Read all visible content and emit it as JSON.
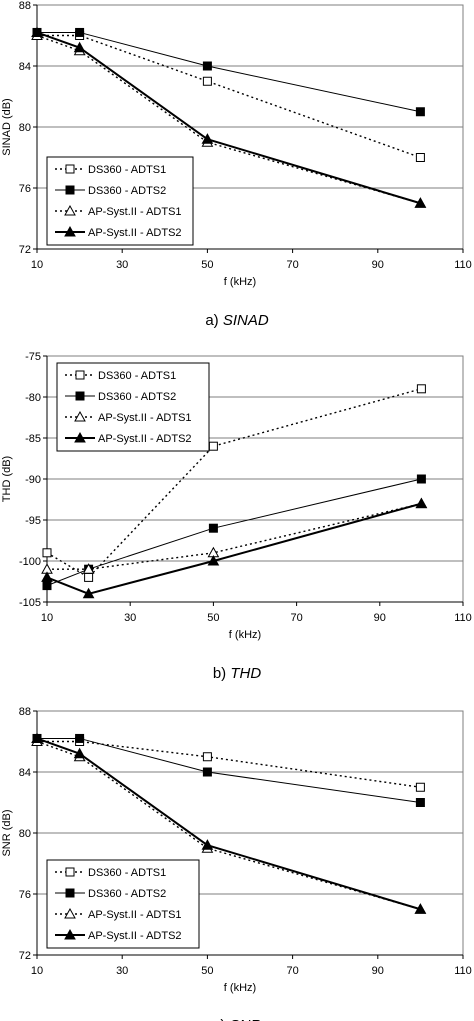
{
  "chart_data": [
    {
      "type": "line",
      "x": [
        10,
        20,
        50,
        100
      ],
      "xlim": [
        10,
        110
      ],
      "ylim": [
        72,
        88
      ],
      "xticks": [
        10,
        30,
        50,
        70,
        90,
        110
      ],
      "yticks": [
        72,
        76,
        80,
        84,
        88
      ],
      "xlabel": "f (kHz)",
      "ylabel": "SINAD (dB)",
      "grid": "horizontal",
      "legend_placement": "bottom-left",
      "caption_prefix": "a) ",
      "caption_italic": "SINAD",
      "series": [
        {
          "name": "DS360 - ADTS1",
          "values": [
            86.0,
            86.0,
            83.0,
            78.0
          ],
          "marker": "square-open",
          "line": "dotted"
        },
        {
          "name": "DS360 - ADTS2",
          "values": [
            86.2,
            86.2,
            84.0,
            81.0
          ],
          "marker": "square-filled",
          "line": "thin"
        },
        {
          "name": "AP-Syst.II - ADTS1",
          "values": [
            86.0,
            85.0,
            79.0,
            75.0
          ],
          "marker": "triangle-open",
          "line": "dotted"
        },
        {
          "name": "AP-Syst.II - ADTS2",
          "values": [
            86.2,
            85.2,
            79.2,
            75.0
          ],
          "marker": "triangle-filled",
          "line": "thick"
        }
      ]
    },
    {
      "type": "line",
      "x": [
        10,
        20,
        50,
        100
      ],
      "xlim": [
        10,
        110
      ],
      "ylim": [
        -105,
        -75
      ],
      "xticks": [
        10,
        30,
        50,
        70,
        90,
        110
      ],
      "yticks": [
        -105,
        -100,
        -95,
        -90,
        -85,
        -80,
        -75
      ],
      "xlabel": "f (kHz)",
      "ylabel": "THD (dB)",
      "grid": "horizontal",
      "legend_placement": "top-left",
      "caption_prefix": "b) ",
      "caption_italic": "THD",
      "series": [
        {
          "name": "DS360 - ADTS1",
          "values": [
            -99,
            -102,
            -86,
            -79
          ],
          "marker": "square-open",
          "line": "dotted"
        },
        {
          "name": "DS360 - ADTS2",
          "values": [
            -103,
            -101,
            -96,
            -90
          ],
          "marker": "square-filled",
          "line": "thin"
        },
        {
          "name": "AP-Syst.II - ADTS1",
          "values": [
            -101,
            -101,
            -99,
            -93
          ],
          "marker": "triangle-open",
          "line": "dotted"
        },
        {
          "name": "AP-Syst.II - ADTS2",
          "values": [
            -102,
            -104,
            -100,
            -93
          ],
          "marker": "triangle-filled",
          "line": "thick"
        }
      ]
    },
    {
      "type": "line",
      "x": [
        10,
        20,
        50,
        100
      ],
      "xlim": [
        10,
        110
      ],
      "ylim": [
        72,
        88
      ],
      "xticks": [
        10,
        30,
        50,
        70,
        90,
        110
      ],
      "yticks": [
        72,
        76,
        80,
        84,
        88
      ],
      "xlabel": "f (kHz)",
      "ylabel": "SNR (dB)",
      "grid": "horizontal",
      "legend_placement": "bottom-left",
      "caption_prefix": "c) ",
      "caption_italic": "SNR",
      "series": [
        {
          "name": "DS360 - ADTS1",
          "values": [
            86.0,
            86.0,
            85.0,
            83.0
          ],
          "marker": "square-open",
          "line": "dotted"
        },
        {
          "name": "DS360 - ADTS2",
          "values": [
            86.2,
            86.2,
            84.0,
            82.0
          ],
          "marker": "square-filled",
          "line": "thin"
        },
        {
          "name": "AP-Syst.II - ADTS1",
          "values": [
            86.0,
            85.0,
            79.0,
            75.0
          ],
          "marker": "triangle-open",
          "line": "dotted"
        },
        {
          "name": "AP-Syst.II - ADTS2",
          "values": [
            86.2,
            85.2,
            79.2,
            75.0
          ],
          "marker": "triangle-filled",
          "line": "thick"
        }
      ]
    }
  ]
}
